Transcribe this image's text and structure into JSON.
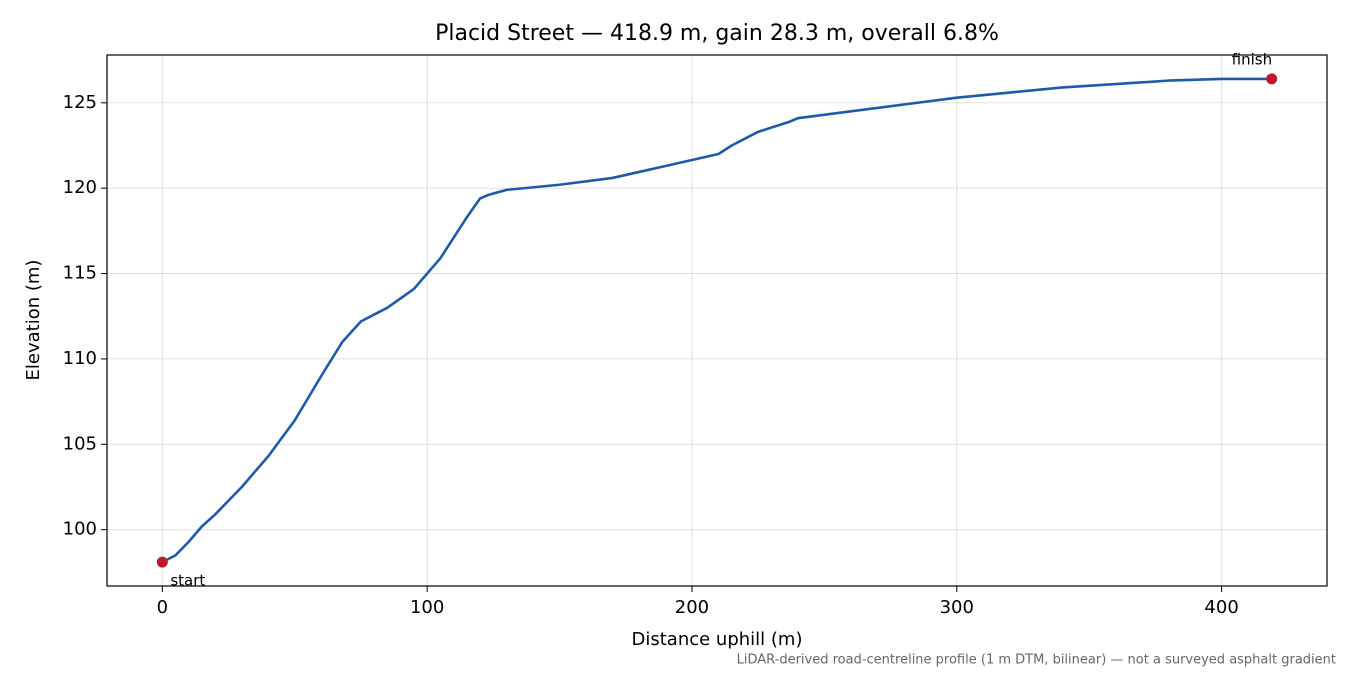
{
  "chart_data": {
    "type": "line",
    "title": "Placid Street — 418.9 m, gain 28.3 m, overall 6.8%",
    "x_label": "Distance uphill (m)",
    "y_label": "Elevation (m)",
    "footnote": "LiDAR-derived road-centreline profile (1 m DTM, bilinear) — not a surveyed asphalt gradient",
    "x": [
      0,
      5,
      10,
      15,
      20,
      30,
      40,
      50,
      60,
      68,
      75,
      85,
      95,
      105,
      115,
      120,
      123,
      130,
      150,
      170,
      190,
      210,
      215,
      225,
      237,
      240,
      260,
      280,
      300,
      320,
      340,
      360,
      380,
      400,
      418.9
    ],
    "values": [
      98.1,
      98.5,
      99.3,
      100.2,
      100.9,
      102.5,
      104.3,
      106.4,
      109.0,
      111.0,
      112.2,
      113.0,
      114.1,
      115.9,
      118.3,
      119.4,
      119.6,
      119.9,
      120.2,
      120.6,
      121.3,
      122.0,
      122.5,
      123.3,
      123.9,
      124.1,
      124.5,
      124.9,
      125.3,
      125.6,
      125.9,
      126.1,
      126.3,
      126.4,
      126.4
    ],
    "color": "#1f5aa8",
    "points": [
      {
        "label": "start",
        "x": 0,
        "value": 98.1
      },
      {
        "label": "finish",
        "x": 418.9,
        "value": 126.4
      }
    ],
    "point_color": "#c0182a",
    "xlim": [
      -20.9,
      439.8
    ],
    "ylim": [
      96.7,
      127.8
    ],
    "xticks": [
      0,
      100,
      200,
      300,
      400
    ],
    "yticks": [
      100,
      105,
      110,
      115,
      120,
      125
    ],
    "grid": true
  }
}
